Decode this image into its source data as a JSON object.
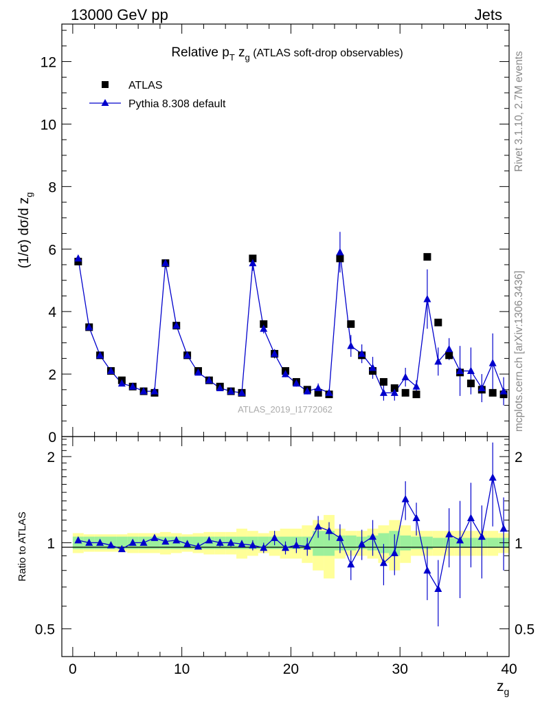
{
  "header": {
    "left": "13000 GeV pp",
    "right": "Jets"
  },
  "side": {
    "top": "Rivet 3.1.10,  2.7M events",
    "bottom": "mcplots.cern.ch [arXiv:1306.3436]"
  },
  "watermark": "ATLAS_2019_I1772062",
  "colors": {
    "data": "#000000",
    "mc": "#0000cc",
    "band_inner": "#9cf09c",
    "band_outer": "#ffff99",
    "ref_line": "#000000"
  },
  "chart_data": [
    {
      "type": "scatter",
      "title_main": "Relative p",
      "title_sub1": "T",
      "title_mid": " z",
      "title_sub2": "g",
      "title_rest": " (ATLAS soft-drop observables)",
      "ylabel": "(1/σ) dσ/d z",
      "ylabel_sub": "g",
      "ylim": [
        0,
        13.2
      ],
      "yticks": [
        0,
        2,
        4,
        6,
        8,
        10,
        12
      ],
      "xlim": [
        -1,
        40
      ],
      "x": [
        0.5,
        1.5,
        2.5,
        3.5,
        4.5,
        5.5,
        6.5,
        7.5,
        8.5,
        9.5,
        10.5,
        11.5,
        12.5,
        13.5,
        14.5,
        15.5,
        16.5,
        17.5,
        18.5,
        19.5,
        20.5,
        21.5,
        22.5,
        23.5,
        24.5,
        25.5,
        26.5,
        27.5,
        28.5,
        29.5,
        30.5,
        31.5,
        32.5,
        33.5,
        34.5,
        35.5,
        36.5,
        37.5,
        38.5,
        39.5
      ],
      "legend": [
        {
          "label": "ATLAS",
          "marker": "square"
        },
        {
          "label": "Pythia 8.308 default",
          "marker": "triangle"
        }
      ],
      "series": [
        {
          "name": "ATLAS",
          "values": [
            5.6,
            3.5,
            2.6,
            2.1,
            1.8,
            1.6,
            1.45,
            1.4,
            5.55,
            3.55,
            2.6,
            2.1,
            1.8,
            1.6,
            1.45,
            1.4,
            5.7,
            3.6,
            2.65,
            2.1,
            1.75,
            1.5,
            1.4,
            1.35,
            5.7,
            3.6,
            2.6,
            2.1,
            1.75,
            1.55,
            1.4,
            1.35,
            5.75,
            3.65,
            2.6,
            2.05,
            1.7,
            1.5,
            1.4,
            1.35
          ]
        },
        {
          "name": "Pythia 8.308 default",
          "values": [
            5.7,
            3.5,
            2.6,
            2.1,
            1.7,
            1.6,
            1.45,
            1.45,
            5.55,
            3.55,
            2.6,
            2.05,
            1.8,
            1.55,
            1.45,
            1.4,
            5.55,
            3.45,
            2.65,
            2.0,
            1.7,
            1.45,
            1.55,
            1.4,
            5.9,
            2.9,
            2.65,
            2.2,
            1.4,
            1.4,
            1.9,
            1.6,
            4.4,
            2.4,
            2.8,
            2.1,
            2.1,
            1.55,
            2.35,
            1.45
          ],
          "errors": [
            0.05,
            0.05,
            0.05,
            0.05,
            0.05,
            0.05,
            0.05,
            0.05,
            0.08,
            0.05,
            0.05,
            0.05,
            0.05,
            0.05,
            0.05,
            0.05,
            0.25,
            0.15,
            0.15,
            0.1,
            0.1,
            0.1,
            0.15,
            0.1,
            0.65,
            0.35,
            0.3,
            0.35,
            0.25,
            0.25,
            0.3,
            0.2,
            0.95,
            0.45,
            0.35,
            0.8,
            0.75,
            0.45,
            0.95,
            0.45
          ]
        }
      ]
    },
    {
      "type": "scatter",
      "ylabel": "Ratio to ATLAS",
      "xlabel": "z",
      "xlabel_sub": "g",
      "yscale": "log",
      "ylim": [
        0.4,
        2.35
      ],
      "yticks": [
        0.5,
        1,
        2
      ],
      "xlim": [
        -1,
        40
      ],
      "xticks": [
        0,
        10,
        20,
        30,
        40
      ],
      "band_inner": [
        0.05,
        0.05,
        0.05,
        0.05,
        0.05,
        0.05,
        0.05,
        0.05,
        0.05,
        0.05,
        0.05,
        0.05,
        0.05,
        0.05,
        0.05,
        0.05,
        0.05,
        0.05,
        0.05,
        0.05,
        0.05,
        0.05,
        0.1,
        0.1,
        0.06,
        0.06,
        0.05,
        0.06,
        0.08,
        0.1,
        0.06,
        0.05,
        0.05,
        0.04,
        0.04,
        0.04,
        0.04,
        0.04,
        0.04,
        0.04
      ],
      "band_outer": [
        0.08,
        0.07,
        0.07,
        0.07,
        0.07,
        0.08,
        0.08,
        0.08,
        0.09,
        0.08,
        0.07,
        0.08,
        0.09,
        0.09,
        0.09,
        0.12,
        0.1,
        0.08,
        0.1,
        0.12,
        0.12,
        0.15,
        0.2,
        0.25,
        0.12,
        0.1,
        0.1,
        0.12,
        0.15,
        0.2,
        0.15,
        0.1,
        0.1,
        0.1,
        0.1,
        0.1,
        0.1,
        0.1,
        0.1,
        0.08
      ],
      "series": [
        {
          "name": "Pythia 8.308 default",
          "values": [
            1.02,
            1.0,
            1.0,
            0.98,
            0.95,
            1.0,
            1.0,
            1.04,
            1.01,
            1.02,
            0.99,
            0.97,
            1.02,
            1.0,
            1.0,
            0.99,
            0.98,
            0.96,
            1.04,
            0.96,
            0.98,
            0.97,
            1.14,
            1.1,
            1.04,
            0.84,
            0.99,
            1.05,
            0.85,
            0.92,
            1.42,
            1.22,
            0.8,
            0.69,
            1.07,
            1.02,
            1.22,
            1.05,
            1.69,
            1.12
          ],
          "errors": [
            0.02,
            0.01,
            0.01,
            0.02,
            0.02,
            0.01,
            0.01,
            0.02,
            0.02,
            0.02,
            0.02,
            0.02,
            0.02,
            0.03,
            0.03,
            0.03,
            0.04,
            0.04,
            0.06,
            0.05,
            0.06,
            0.07,
            0.1,
            0.08,
            0.12,
            0.1,
            0.12,
            0.15,
            0.14,
            0.15,
            0.22,
            0.16,
            0.17,
            0.18,
            0.25,
            0.38,
            0.4,
            0.3,
            0.55,
            0.32
          ]
        }
      ]
    }
  ]
}
